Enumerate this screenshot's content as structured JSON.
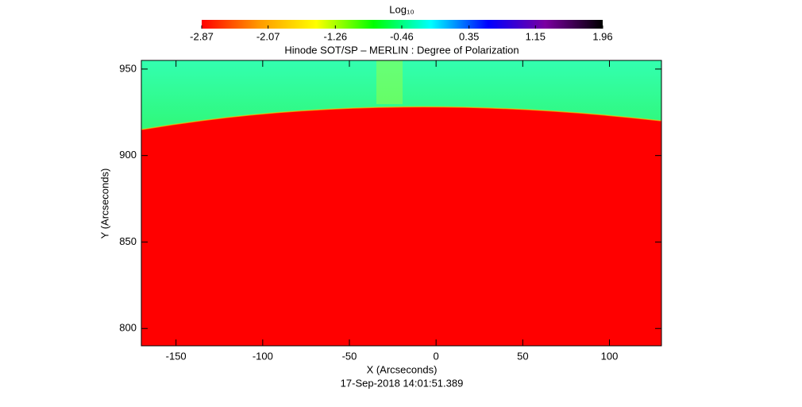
{
  "chart_data": {
    "type": "image",
    "title": "Hinode SOT/SP – MERLIN : Degree of Polarization",
    "x_label": "X (Arcseconds)",
    "y_label": "Y (Arcseconds)",
    "footer": "17-Sep-2018 14:01:51.389",
    "xlim": [
      -170,
      130
    ],
    "xticks": [
      -150,
      -100,
      -50,
      0,
      50,
      100
    ],
    "ylim": [
      790,
      955
    ],
    "yticks": [
      800,
      850,
      900,
      950
    ],
    "colorbar_label": "Log₁₀",
    "clim": [
      -2.87,
      1.96
    ],
    "colorbar_ticks": [
      -2.87,
      -2.07,
      -1.26,
      -0.46,
      0.35,
      1.15,
      1.96
    ],
    "colormap": [
      "#ff0000",
      "#ff9900",
      "#ffff00",
      "#00ff00",
      "#00ffff",
      "#0000ff",
      "#7a00a0",
      "#000000"
    ]
  }
}
